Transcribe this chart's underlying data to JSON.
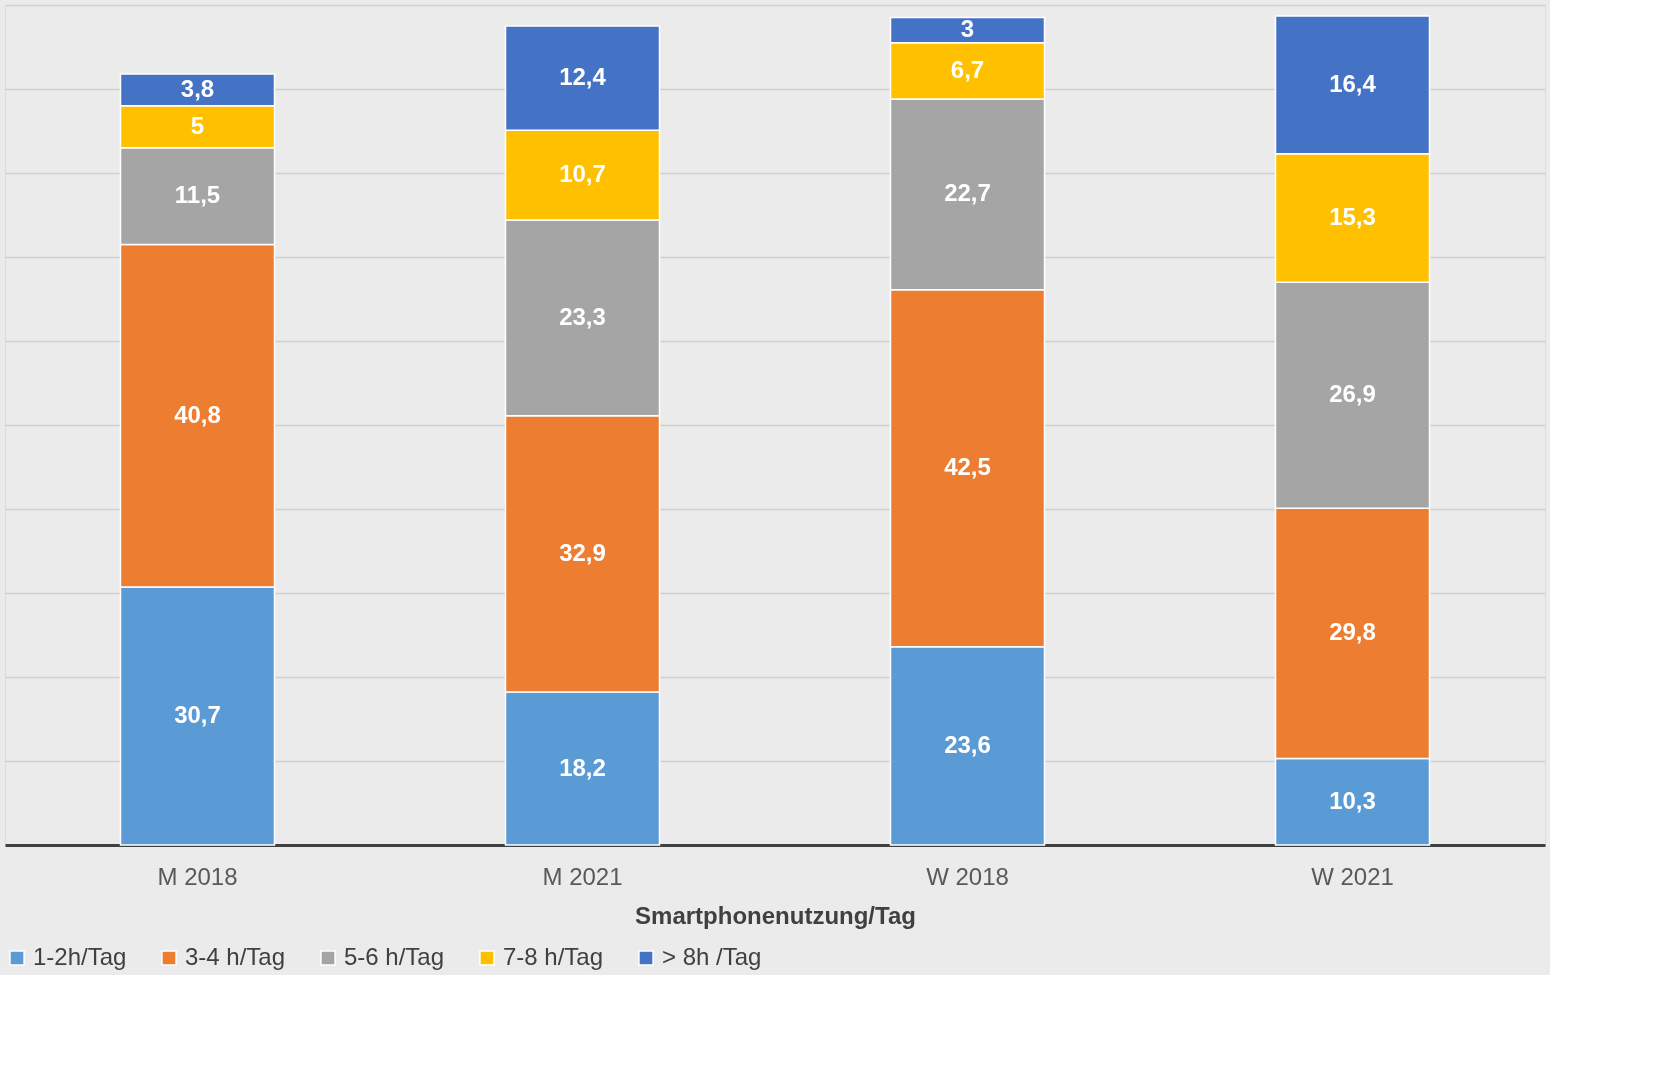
{
  "chart_data": {
    "type": "bar",
    "stacked": true,
    "xlabel": "Smartphonenutzung/Tag",
    "categories": [
      "M 2018",
      "M 2021",
      "W 2018",
      "W 2021"
    ],
    "series": [
      {
        "name": "1-2h/Tag",
        "color": "#5b9bd5",
        "values": [
          30.7,
          18.2,
          23.6,
          10.3
        ],
        "value_labels": [
          "30,7",
          "18,2",
          "23,6",
          "10,3"
        ]
      },
      {
        "name": "3-4 h/Tag",
        "color": "#ed7d31",
        "values": [
          40.8,
          32.9,
          42.5,
          29.8
        ],
        "value_labels": [
          "40,8",
          "32,9",
          "42,5",
          "29,8"
        ]
      },
      {
        "name": "5-6 h/Tag",
        "color": "#a5a5a5",
        "values": [
          11.5,
          23.3,
          22.7,
          26.9
        ],
        "value_labels": [
          "11,5",
          "23,3",
          "22,7",
          "26,9"
        ]
      },
      {
        "name": "7-8 h/Tag",
        "color": "#ffc000",
        "values": [
          5,
          10.7,
          6.7,
          15.3
        ],
        "value_labels": [
          "5",
          "10,7",
          "6,7",
          "15,3"
        ]
      },
      {
        "name": "> 8h /Tag",
        "color": "#4472c4",
        "values": [
          3.8,
          12.4,
          3,
          16.4
        ],
        "value_labels": [
          "3,8",
          "12,4",
          "3",
          "16,4"
        ]
      }
    ],
    "ylim": [
      0,
      100
    ],
    "yticks": [
      {
        "value": 0,
        "label": null
      },
      {
        "value": 10,
        "label": null
      },
      {
        "value": 20,
        "label": null
      },
      {
        "value": 30,
        "label": null
      },
      {
        "value": 40,
        "label": null
      },
      {
        "value": 50,
        "label": null
      },
      {
        "value": 60,
        "label": null
      },
      {
        "value": 70,
        "label": null
      },
      {
        "value": 80,
        "label": null
      },
      {
        "value": 90,
        "label": null
      },
      {
        "value": 100,
        "label": null
      }
    ],
    "tick_labels": "x",
    "grid": "y",
    "legend": "bottom"
  }
}
